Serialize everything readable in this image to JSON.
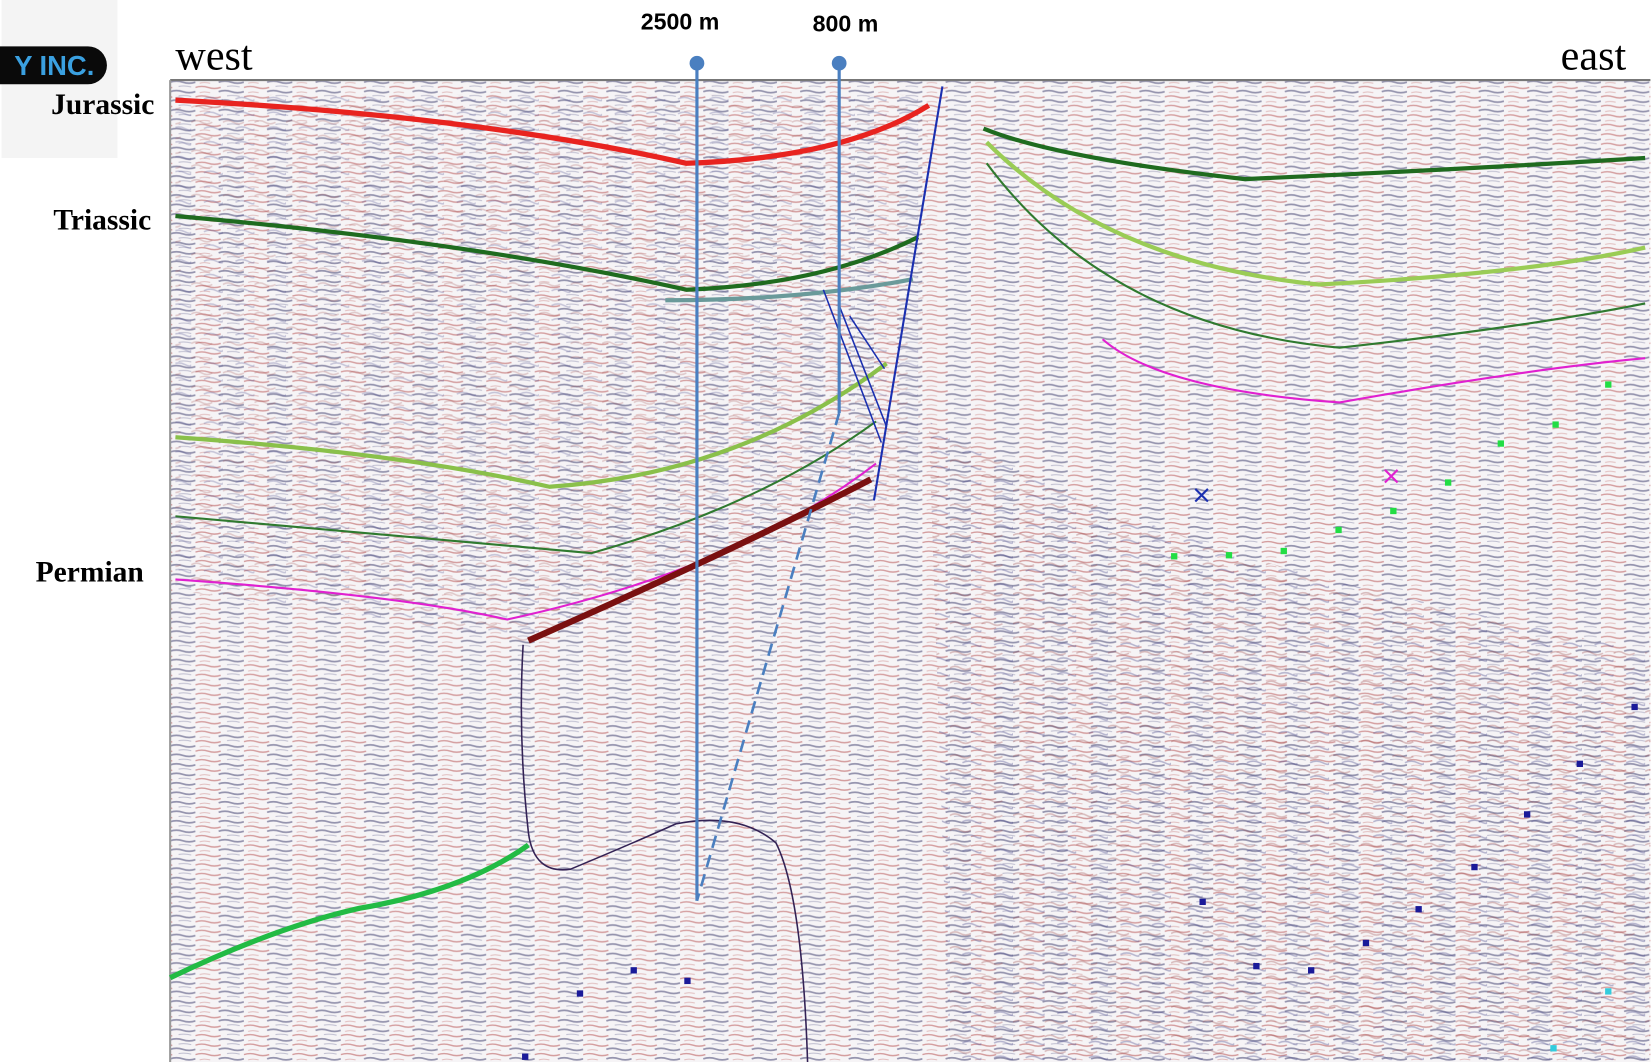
{
  "logo": {
    "text": "Y INC."
  },
  "section": {
    "west": "west",
    "east": "east"
  },
  "formations": [
    "Jurassic",
    "Triassic",
    "Permian"
  ],
  "wells": [
    {
      "label": "2500 m"
    },
    {
      "label": "800 m"
    }
  ]
}
